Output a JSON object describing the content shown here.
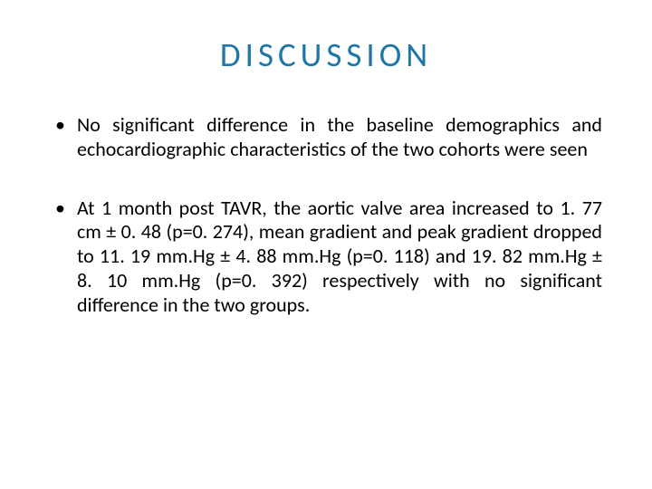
{
  "title_color": "#1f77a8",
  "text_color": "#000000",
  "background_color": "#ffffff",
  "title": "DISCUSSION",
  "bullets": [
    "No significant difference in the baseline demographics and echocardiographic characteristics of the two cohorts were seen",
    "At 1 month post TAVR, the aortic valve area increased to 1. 77 cm ± 0. 48 (p=0. 274), mean gradient and peak gradient dropped to 11. 19 mm.Hg ± 4. 88 mm.Hg (p=0. 118) and 19. 82 mm.Hg ± 8. 10 mm.Hg (p=0. 392) respectively with no significant difference in the two groups."
  ]
}
